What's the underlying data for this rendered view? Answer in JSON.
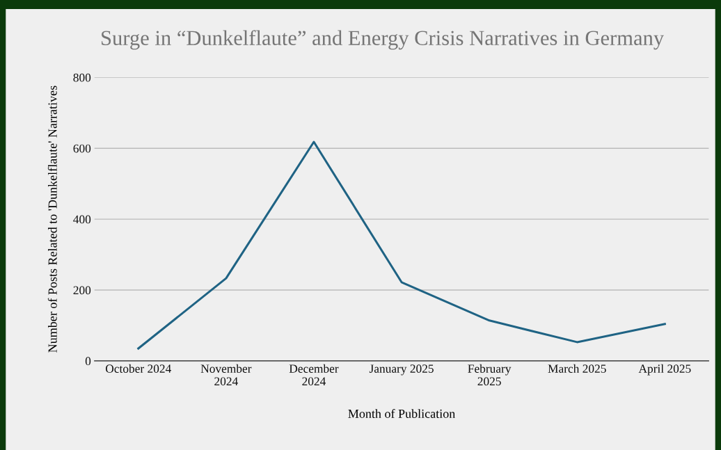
{
  "chart_data": {
    "type": "line",
    "title": "Surge in “Dunkelflaute” and Energy Crisis Narratives in Germany",
    "xlabel": "Month of Publication",
    "ylabel": "Number of Posts Related to 'Dunkelflaute' Narratives",
    "categories": [
      "October 2024",
      "November 2024",
      "December 2024",
      "January 2025",
      "February 2025",
      "March 2025",
      "April 2025"
    ],
    "series": [
      {
        "color": "#1f6384",
        "values": [
          35,
          233,
          618,
          222,
          114,
          53,
          104
        ]
      }
    ],
    "ylim": [
      0,
      800
    ],
    "yticks": [
      0,
      200,
      400,
      600,
      800
    ],
    "grid": "y",
    "marker": "none",
    "line_style": "solid"
  }
}
